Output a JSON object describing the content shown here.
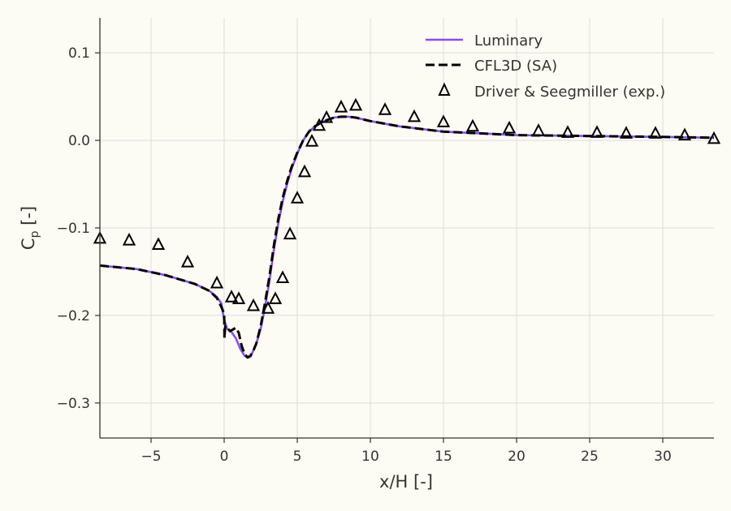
{
  "chart_data": {
    "type": "line",
    "title": "",
    "xlabel": "x/H [-]",
    "ylabel_base": "C",
    "ylabel_sub": "p",
    "ylabel_suffix": " [-]",
    "xlim": [
      -8.5,
      33.5
    ],
    "ylim": [
      -0.34,
      0.14
    ],
    "xticks": [
      -5,
      0,
      5,
      10,
      15,
      20,
      25,
      30
    ],
    "xtick_labels": [
      "−5",
      "0",
      "5",
      "10",
      "15",
      "20",
      "25",
      "30"
    ],
    "yticks": [
      0.1,
      0.0,
      -0.1,
      -0.2,
      -0.3
    ],
    "ytick_labels": [
      "0.1",
      "0.0",
      "−0.1",
      "−0.2",
      "−0.3"
    ],
    "grid": true,
    "legend_position": "top-right",
    "series": [
      {
        "name": "Luminary",
        "kind": "line",
        "color": "#8a4cf0",
        "x": [
          -8.5,
          -6,
          -4,
          -2,
          -1,
          -0.5,
          -0.2,
          0,
          0.2,
          0.5,
          0.8,
          1.1,
          1.4,
          1.6,
          1.8,
          2.0,
          2.2,
          2.5,
          2.8,
          3.1,
          3.4,
          3.7,
          4.0,
          4.3,
          4.6,
          5.0,
          5.4,
          5.8,
          6.2,
          6.6,
          7.0,
          7.5,
          8.0,
          8.5,
          9,
          10,
          12,
          15,
          20,
          25,
          30,
          33.5
        ],
        "y": [
          -0.143,
          -0.147,
          -0.154,
          -0.164,
          -0.172,
          -0.179,
          -0.186,
          -0.205,
          -0.215,
          -0.219,
          -0.226,
          -0.238,
          -0.246,
          -0.248,
          -0.247,
          -0.24,
          -0.232,
          -0.215,
          -0.19,
          -0.16,
          -0.125,
          -0.095,
          -0.07,
          -0.05,
          -0.033,
          -0.015,
          0.0,
          0.01,
          0.016,
          0.02,
          0.023,
          0.026,
          0.027,
          0.027,
          0.026,
          0.022,
          0.016,
          0.01,
          0.006,
          0.005,
          0.004,
          0.003
        ]
      },
      {
        "name": "CFL3D (SA)",
        "kind": "line-dashed",
        "color": "#000000",
        "x": [
          -8.5,
          -6,
          -4,
          -2,
          -1,
          -0.5,
          -0.2,
          0,
          0.02,
          0.04,
          0.08,
          0.2,
          0.4,
          0.6,
          0.8,
          1.0,
          1.2,
          1.4,
          1.6,
          1.8,
          2.0,
          2.2,
          2.5,
          2.8,
          3.1,
          3.4,
          3.7,
          4.0,
          4.3,
          4.6,
          5.0,
          5.4,
          5.8,
          6.2,
          6.6,
          7.0,
          7.5,
          8.0,
          8.5,
          9,
          10,
          12,
          15,
          20,
          25,
          30,
          33.5
        ],
        "y": [
          -0.143,
          -0.147,
          -0.154,
          -0.164,
          -0.172,
          -0.18,
          -0.19,
          -0.198,
          -0.226,
          -0.22,
          -0.212,
          -0.214,
          -0.218,
          -0.216,
          -0.214,
          -0.22,
          -0.235,
          -0.244,
          -0.248,
          -0.246,
          -0.24,
          -0.232,
          -0.212,
          -0.185,
          -0.155,
          -0.12,
          -0.09,
          -0.066,
          -0.047,
          -0.031,
          -0.014,
          0.0,
          0.01,
          0.016,
          0.02,
          0.023,
          0.026,
          0.027,
          0.027,
          0.026,
          0.022,
          0.016,
          0.01,
          0.006,
          0.005,
          0.004,
          0.003
        ]
      },
      {
        "name": "Driver & Seegmiller (exp.)",
        "kind": "scatter-triangle",
        "color": "#000000",
        "x": [
          -8.5,
          -6.5,
          -4.5,
          -2.5,
          -0.5,
          0.5,
          1.0,
          2.0,
          3.0,
          3.5,
          4.0,
          4.5,
          5.0,
          5.5,
          6.0,
          6.5,
          7.0,
          8.0,
          9.0,
          11.0,
          13.0,
          15.0,
          17.0,
          19.5,
          21.5,
          23.5,
          25.5,
          27.5,
          29.5,
          31.5,
          33.5
        ],
        "y": [
          -0.112,
          -0.114,
          -0.119,
          -0.139,
          -0.163,
          -0.179,
          -0.181,
          -0.189,
          -0.192,
          -0.181,
          -0.157,
          -0.107,
          -0.066,
          -0.036,
          -0.001,
          0.017,
          0.026,
          0.038,
          0.04,
          0.035,
          0.027,
          0.021,
          0.016,
          0.014,
          0.011,
          0.009,
          0.009,
          0.008,
          0.008,
          0.006,
          0.002
        ]
      }
    ]
  }
}
